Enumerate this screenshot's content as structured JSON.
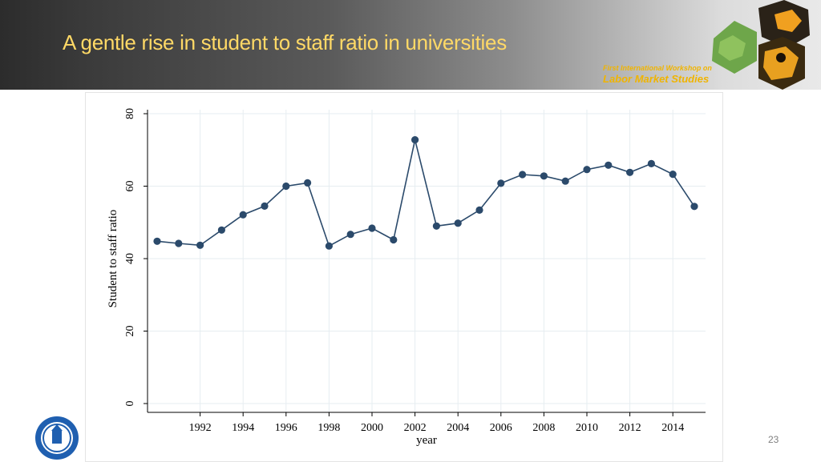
{
  "slide": {
    "title": "A gentle rise in student to staff ratio in universities",
    "page_number": "23",
    "banner_logo_line1": "First International Workshop on",
    "banner_logo_line2": "Labor Market Studies",
    "title_color": "#ffd966",
    "series_color": "#2b4a6b"
  },
  "chart_data": {
    "type": "line",
    "title": "",
    "xlabel": "year",
    "ylabel": "Student to staff ratio",
    "xlim": [
      1990,
      2015
    ],
    "ylim": [
      0,
      80
    ],
    "x_ticks": [
      1992,
      1994,
      1996,
      1998,
      2000,
      2002,
      2004,
      2006,
      2008,
      2010,
      2012,
      2014
    ],
    "y_ticks": [
      0,
      20,
      40,
      60,
      80
    ],
    "grid": true,
    "series": [
      {
        "name": "Student to staff ratio",
        "x": [
          1990,
          1991,
          1992,
          1993,
          1994,
          1995,
          1996,
          1997,
          1998,
          1999,
          2000,
          2001,
          2002,
          2003,
          2004,
          2005,
          2006,
          2007,
          2008,
          2009,
          2010,
          2011,
          2012,
          2013,
          2014,
          2015
        ],
        "y": [
          44.8,
          44.2,
          43.7,
          47.9,
          52.1,
          54.5,
          60.0,
          60.9,
          43.5,
          46.7,
          48.4,
          45.2,
          72.8,
          49.0,
          49.8,
          53.4,
          60.8,
          63.2,
          62.8,
          61.4,
          64.6,
          65.8,
          63.8,
          66.2,
          63.3,
          54.4
        ]
      }
    ]
  }
}
